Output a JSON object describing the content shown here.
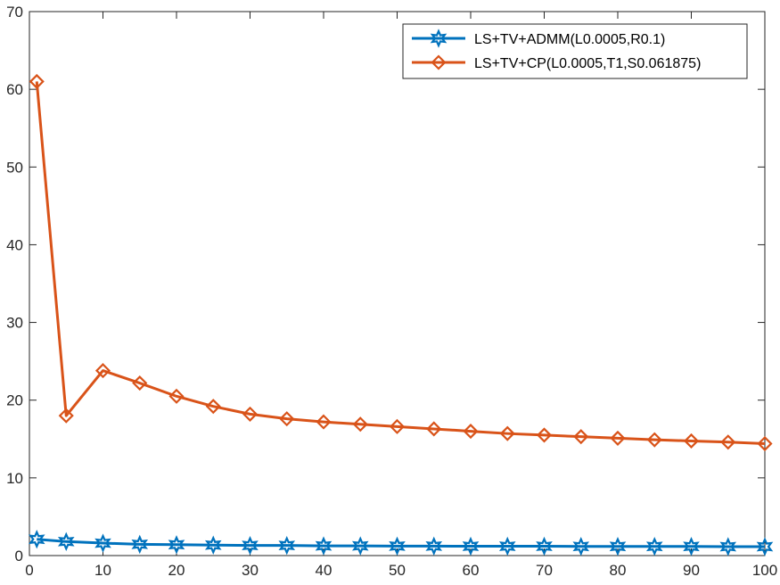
{
  "chart_data": {
    "type": "line",
    "title": "",
    "xlabel": "",
    "ylabel": "",
    "xlim": [
      0,
      100
    ],
    "ylim": [
      0,
      70
    ],
    "x_ticks": [
      0,
      10,
      20,
      30,
      40,
      50,
      60,
      70,
      80,
      90,
      100
    ],
    "y_ticks": [
      0,
      10,
      20,
      30,
      40,
      50,
      60,
      70
    ],
    "grid": false,
    "legend_position": "top-right",
    "series": [
      {
        "name": "LS+TV+ADMM(L0.0005,R0.1)",
        "color": "#0072BD",
        "marker": "hexagram",
        "x": [
          1,
          5,
          10,
          15,
          20,
          25,
          30,
          35,
          40,
          45,
          50,
          55,
          60,
          65,
          70,
          75,
          80,
          85,
          90,
          95,
          100
        ],
        "values": [
          2.1,
          1.8,
          1.6,
          1.45,
          1.4,
          1.35,
          1.3,
          1.3,
          1.25,
          1.25,
          1.22,
          1.22,
          1.2,
          1.2,
          1.2,
          1.18,
          1.18,
          1.18,
          1.18,
          1.15,
          1.15
        ]
      },
      {
        "name": "LS+TV+CP(L0.0005,T1,S0.061875)",
        "color": "#D95319",
        "marker": "diamond",
        "x": [
          1,
          5,
          10,
          15,
          20,
          25,
          30,
          35,
          40,
          45,
          50,
          55,
          60,
          65,
          70,
          75,
          80,
          85,
          90,
          95,
          100
        ],
        "values": [
          61.0,
          18.0,
          23.8,
          22.2,
          20.5,
          19.2,
          18.2,
          17.6,
          17.2,
          16.9,
          16.6,
          16.3,
          16.0,
          15.7,
          15.5,
          15.3,
          15.1,
          14.9,
          14.75,
          14.6,
          14.4
        ]
      }
    ]
  }
}
